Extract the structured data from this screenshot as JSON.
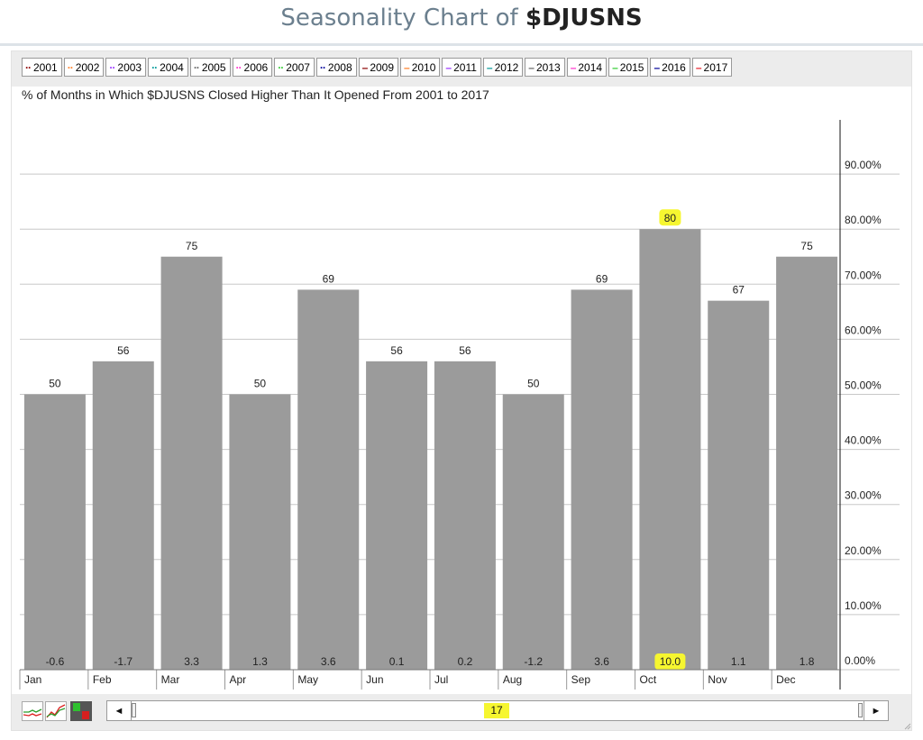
{
  "page": {
    "title_prefix": "Seasonality Chart of ",
    "symbol": "$DJUSNS"
  },
  "legend": [
    {
      "label": "2001",
      "color": "#8b0000",
      "style": "dot"
    },
    {
      "label": "2002",
      "color": "#ff7f27",
      "style": "dot"
    },
    {
      "label": "2003",
      "color": "#9933ff",
      "style": "dot"
    },
    {
      "label": "2004",
      "color": "#009999",
      "style": "dot"
    },
    {
      "label": "2005",
      "color": "#666666",
      "style": "dot"
    },
    {
      "label": "2006",
      "color": "#ff33cc",
      "style": "dot"
    },
    {
      "label": "2007",
      "color": "#33cc33",
      "style": "dot"
    },
    {
      "label": "2008",
      "color": "#000099",
      "style": "dot"
    },
    {
      "label": "2009",
      "color": "#8b0000",
      "style": "solid"
    },
    {
      "label": "2010",
      "color": "#ff7f27",
      "style": "solid"
    },
    {
      "label": "2011",
      "color": "#9933ff",
      "style": "solid"
    },
    {
      "label": "2012",
      "color": "#009999",
      "style": "solid"
    },
    {
      "label": "2013",
      "color": "#666666",
      "style": "solid"
    },
    {
      "label": "2014",
      "color": "#ff33cc",
      "style": "solid"
    },
    {
      "label": "2015",
      "color": "#33cc33",
      "style": "solid"
    },
    {
      "label": "2016",
      "color": "#000099",
      "style": "solid"
    },
    {
      "label": "2017",
      "color": "#e8202a",
      "style": "solid"
    }
  ],
  "chart_data": {
    "type": "bar",
    "title": "% of Months in Which $DJUSNS Closed Higher Than It Opened From 2001 to 2017",
    "categories": [
      "Jan",
      "Feb",
      "Mar",
      "Apr",
      "May",
      "Jun",
      "Jul",
      "Aug",
      "Sep",
      "Oct",
      "Nov",
      "Dec"
    ],
    "series": [
      {
        "values": [
          50,
          56,
          75,
          50,
          69,
          56,
          56,
          50,
          69,
          80,
          67,
          75
        ]
      }
    ],
    "bar_labels": [
      "50",
      "56",
      "75",
      "50",
      "69",
      "56",
      "56",
      "50",
      "69",
      "80",
      "67",
      "75"
    ],
    "avg_change_labels": [
      "-0.6",
      "-1.7",
      "3.3",
      "1.3",
      "3.6",
      "0.1",
      "0.2",
      "-1.2",
      "3.6",
      "10.0",
      "1.1",
      "1.8"
    ],
    "highlighted_category": "Oct",
    "yaxis": {
      "position": "right",
      "range": [
        0,
        100
      ],
      "ticks": [
        0,
        10,
        20,
        30,
        40,
        50,
        60,
        70,
        80,
        90
      ],
      "tick_labels": [
        "0.00%",
        "10.00%",
        "20.00%",
        "30.00%",
        "40.00%",
        "50.00%",
        "60.00%",
        "70.00%",
        "80.00%",
        "90.00%"
      ]
    },
    "grid": true,
    "bar_color": "#9b9b9b",
    "highlight_color": "#f6f630"
  },
  "scrollbar": {
    "range_label": "17",
    "left_arrow": "◄",
    "right_arrow": "►"
  }
}
